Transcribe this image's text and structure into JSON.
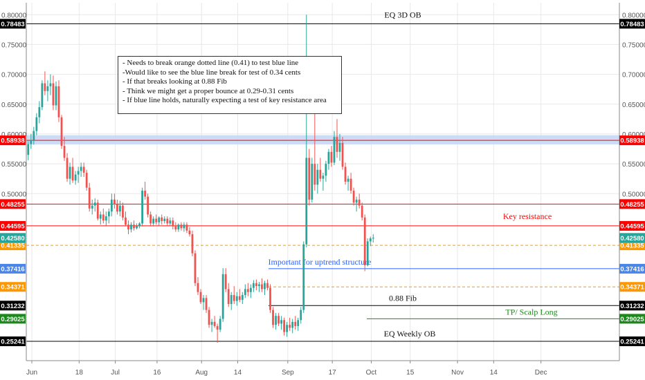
{
  "chart_data": {
    "type": "candlestick",
    "y_range": [
      0.22,
      0.82
    ],
    "axis_ticks": [
      "0.50000",
      "0.55000",
      "0.60000",
      "0.65000",
      "0.70000",
      "0.75000",
      "0.80000"
    ],
    "axis_tick_values": [
      0.5,
      0.55,
      0.6,
      0.65,
      0.7,
      0.75,
      0.8
    ],
    "x_ticks": [
      {
        "label": "Jun",
        "day": 0
      },
      {
        "label": "18",
        "day": 17
      },
      {
        "label": "Jul",
        "day": 30
      },
      {
        "label": "16",
        "day": 45
      },
      {
        "label": "Aug",
        "day": 61
      },
      {
        "label": "14",
        "day": 74
      },
      {
        "label": "Sep",
        "day": 92
      },
      {
        "label": "17",
        "day": 108
      },
      {
        "label": "Oct",
        "day": 122
      },
      {
        "label": "15",
        "day": 136
      },
      {
        "label": "Nov",
        "day": 153
      },
      {
        "label": "14",
        "day": 166
      },
      {
        "label": "Dec",
        "day": 183
      }
    ],
    "levels": [
      {
        "value": 0.78483,
        "label": "0.78483",
        "color": "#000000",
        "style": "solid",
        "text": "EQ 3D OB"
      },
      {
        "value": 0.58938,
        "label": "0.58938",
        "color": "#ff0000",
        "style": "solid",
        "text": ""
      },
      {
        "value": 0.48255,
        "label": "0.48255",
        "color": "#ff0000",
        "style": "solid",
        "text": ""
      },
      {
        "value": 0.44595,
        "label": "0.44595",
        "color": "#ff0000",
        "style": "solid",
        "text": "Key resistance"
      },
      {
        "value": 0.41335,
        "label": "0.41335",
        "color": "#ff9800",
        "style": "dashed",
        "text": ""
      },
      {
        "value": 0.37416,
        "label": "0.37416",
        "color": "#2962ff",
        "style": "solid",
        "text": "Important for uptrend structure"
      },
      {
        "value": 0.34371,
        "label": "0.34371",
        "color": "#ff9800",
        "style": "dashed",
        "text": ""
      },
      {
        "value": 0.31232,
        "label": "0.31232",
        "color": "#000000",
        "style": "solid",
        "text": "0.88 Fib"
      },
      {
        "value": 0.29025,
        "label": "0.29025",
        "color": "#1b8a1b",
        "style": "solid",
        "text": "TP/ Scalp Long"
      },
      {
        "value": 0.25241,
        "label": "0.25241",
        "color": "#000000",
        "style": "solid",
        "text": "EQ Weekly OB"
      }
    ],
    "last_price": {
      "value": 0.4258,
      "label": "0.42580",
      "color": "#26a69a"
    },
    "zone": {
      "low": 0.5825,
      "high": 0.598,
      "color": "#c6d8f5"
    },
    "candles": [
      [
        0.548,
        0.572,
        0.542,
        0.565
      ],
      [
        0.565,
        0.588,
        0.556,
        0.583
      ],
      [
        0.583,
        0.6,
        0.575,
        0.59
      ],
      [
        0.59,
        0.612,
        0.582,
        0.605
      ],
      [
        0.605,
        0.635,
        0.598,
        0.628
      ],
      [
        0.628,
        0.655,
        0.618,
        0.645
      ],
      [
        0.645,
        0.69,
        0.64,
        0.685
      ],
      [
        0.685,
        0.705,
        0.665,
        0.672
      ],
      [
        0.672,
        0.69,
        0.655,
        0.68
      ],
      [
        0.68,
        0.7,
        0.665,
        0.685
      ],
      [
        0.685,
        0.698,
        0.64,
        0.648
      ],
      [
        0.648,
        0.688,
        0.64,
        0.68
      ],
      [
        0.68,
        0.69,
        0.62,
        0.628
      ],
      [
        0.628,
        0.632,
        0.575,
        0.58
      ],
      [
        0.58,
        0.595,
        0.555,
        0.56
      ],
      [
        0.56,
        0.568,
        0.52,
        0.525
      ],
      [
        0.525,
        0.552,
        0.515,
        0.545
      ],
      [
        0.545,
        0.56,
        0.518,
        0.522
      ],
      [
        0.522,
        0.538,
        0.515,
        0.532
      ],
      [
        0.532,
        0.545,
        0.518,
        0.538
      ],
      [
        0.538,
        0.552,
        0.528,
        0.545
      ],
      [
        0.545,
        0.552,
        0.528,
        0.535
      ],
      [
        0.535,
        0.54,
        0.505,
        0.51
      ],
      [
        0.51,
        0.518,
        0.47,
        0.475
      ],
      [
        0.475,
        0.49,
        0.465,
        0.48
      ],
      [
        0.48,
        0.492,
        0.47,
        0.485
      ],
      [
        0.485,
        0.49,
        0.455,
        0.458
      ],
      [
        0.458,
        0.47,
        0.448,
        0.465
      ],
      [
        0.465,
        0.475,
        0.45,
        0.455
      ],
      [
        0.455,
        0.47,
        0.445,
        0.462
      ],
      [
        0.462,
        0.475,
        0.45,
        0.47
      ],
      [
        0.47,
        0.5,
        0.462,
        0.49
      ],
      [
        0.49,
        0.5,
        0.475,
        0.482
      ],
      [
        0.482,
        0.49,
        0.465,
        0.47
      ],
      [
        0.47,
        0.488,
        0.462,
        0.48
      ],
      [
        0.48,
        0.485,
        0.455,
        0.46
      ],
      [
        0.46,
        0.47,
        0.445,
        0.448
      ],
      [
        0.448,
        0.455,
        0.432,
        0.44
      ],
      [
        0.44,
        0.452,
        0.435,
        0.448
      ],
      [
        0.448,
        0.455,
        0.438,
        0.442
      ],
      [
        0.442,
        0.45,
        0.44,
        0.446
      ],
      [
        0.446,
        0.452,
        0.442,
        0.45
      ],
      [
        0.45,
        0.51,
        0.445,
        0.505
      ],
      [
        0.505,
        0.52,
        0.49,
        0.495
      ],
      [
        0.495,
        0.5,
        0.46,
        0.465
      ],
      [
        0.465,
        0.47,
        0.445,
        0.45
      ],
      [
        0.45,
        0.462,
        0.445,
        0.458
      ],
      [
        0.458,
        0.465,
        0.448,
        0.452
      ],
      [
        0.452,
        0.462,
        0.446,
        0.46
      ],
      [
        0.46,
        0.465,
        0.448,
        0.454
      ],
      [
        0.454,
        0.462,
        0.45,
        0.458
      ],
      [
        0.458,
        0.462,
        0.446,
        0.45
      ],
      [
        0.45,
        0.46,
        0.446,
        0.455
      ],
      [
        0.455,
        0.46,
        0.44,
        0.445
      ],
      [
        0.445,
        0.452,
        0.436,
        0.44
      ],
      [
        0.44,
        0.45,
        0.436,
        0.448
      ],
      [
        0.448,
        0.452,
        0.438,
        0.442
      ],
      [
        0.442,
        0.452,
        0.436,
        0.448
      ],
      [
        0.448,
        0.452,
        0.434,
        0.438
      ],
      [
        0.438,
        0.444,
        0.428,
        0.432
      ],
      [
        0.432,
        0.438,
        0.395,
        0.4
      ],
      [
        0.4,
        0.405,
        0.345,
        0.35
      ],
      [
        0.35,
        0.36,
        0.33,
        0.335
      ],
      [
        0.335,
        0.34,
        0.315,
        0.318
      ],
      [
        0.318,
        0.33,
        0.305,
        0.325
      ],
      [
        0.325,
        0.33,
        0.3,
        0.305
      ],
      [
        0.305,
        0.31,
        0.275,
        0.28
      ],
      [
        0.28,
        0.29,
        0.268,
        0.285
      ],
      [
        0.285,
        0.295,
        0.275,
        0.278
      ],
      [
        0.278,
        0.282,
        0.25,
        0.272
      ],
      [
        0.272,
        0.295,
        0.268,
        0.29
      ],
      [
        0.29,
        0.375,
        0.285,
        0.365
      ],
      [
        0.365,
        0.375,
        0.335,
        0.34
      ],
      [
        0.34,
        0.35,
        0.31,
        0.315
      ],
      [
        0.315,
        0.335,
        0.305,
        0.33
      ],
      [
        0.33,
        0.345,
        0.315,
        0.32
      ],
      [
        0.32,
        0.335,
        0.312,
        0.328
      ],
      [
        0.328,
        0.34,
        0.318,
        0.322
      ],
      [
        0.322,
        0.335,
        0.315,
        0.33
      ],
      [
        0.33,
        0.348,
        0.325,
        0.34
      ],
      [
        0.34,
        0.35,
        0.328,
        0.335
      ],
      [
        0.335,
        0.348,
        0.325,
        0.342
      ],
      [
        0.342,
        0.355,
        0.335,
        0.35
      ],
      [
        0.35,
        0.356,
        0.338,
        0.345
      ],
      [
        0.345,
        0.352,
        0.335,
        0.348
      ],
      [
        0.348,
        0.358,
        0.335,
        0.34
      ],
      [
        0.34,
        0.354,
        0.33,
        0.35
      ],
      [
        0.35,
        0.356,
        0.338,
        0.342
      ],
      [
        0.342,
        0.348,
        0.3,
        0.305
      ],
      [
        0.305,
        0.31,
        0.275,
        0.28
      ],
      [
        0.28,
        0.3,
        0.272,
        0.295
      ],
      [
        0.295,
        0.3,
        0.278,
        0.282
      ],
      [
        0.282,
        0.295,
        0.272,
        0.288
      ],
      [
        0.288,
        0.292,
        0.262,
        0.268
      ],
      [
        0.268,
        0.285,
        0.26,
        0.28
      ],
      [
        0.28,
        0.292,
        0.27,
        0.275
      ],
      [
        0.275,
        0.29,
        0.266,
        0.285
      ],
      [
        0.285,
        0.295,
        0.272,
        0.278
      ],
      [
        0.278,
        0.292,
        0.27,
        0.288
      ],
      [
        0.288,
        0.31,
        0.282,
        0.305
      ],
      [
        0.305,
        0.42,
        0.3,
        0.415
      ],
      [
        0.415,
        0.8,
        0.41,
        0.56
      ],
      [
        0.56,
        0.575,
        0.48,
        0.49
      ],
      [
        0.49,
        0.56,
        0.485,
        0.55
      ],
      [
        0.55,
        0.635,
        0.505,
        0.515
      ],
      [
        0.515,
        0.55,
        0.5,
        0.54
      ],
      [
        0.54,
        0.56,
        0.52,
        0.525
      ],
      [
        0.525,
        0.535,
        0.505,
        0.53
      ],
      [
        0.53,
        0.555,
        0.52,
        0.55
      ],
      [
        0.55,
        0.575,
        0.54,
        0.57
      ],
      [
        0.57,
        0.58,
        0.545,
        0.552
      ],
      [
        0.552,
        0.605,
        0.548,
        0.595
      ],
      [
        0.595,
        0.625,
        0.56,
        0.57
      ],
      [
        0.57,
        0.6,
        0.555,
        0.585
      ],
      [
        0.585,
        0.595,
        0.54,
        0.545
      ],
      [
        0.545,
        0.552,
        0.515,
        0.52
      ],
      [
        0.52,
        0.53,
        0.505,
        0.525
      ],
      [
        0.525,
        0.535,
        0.5,
        0.505
      ],
      [
        0.505,
        0.51,
        0.48,
        0.485
      ],
      [
        0.485,
        0.495,
        0.47,
        0.49
      ],
      [
        0.49,
        0.5,
        0.475,
        0.48
      ],
      [
        0.48,
        0.485,
        0.455,
        0.46
      ],
      [
        0.46,
        0.465,
        0.37,
        0.38
      ],
      [
        0.38,
        0.425,
        0.378,
        0.42
      ],
      [
        0.42,
        0.428,
        0.412,
        0.425
      ],
      [
        0.425,
        0.432,
        0.418,
        0.426
      ]
    ]
  },
  "annotation": {
    "lines": [
      "- Needs to break orange dotted line (0.41) to test blue line",
      "-Would like to see the blue line break for test of 0.34 cents",
      "- If that breaks looking at 0.88 Fib",
      "- Think we might get a proper bounce at  0.29-0.31 cents",
      "- If blue line holds, naturally expecting a test of key resistance area"
    ]
  },
  "colors": {
    "up": "#26a69a",
    "down": "#ef5350",
    "grid": "#e8e8e8",
    "axis_text": "#555555"
  }
}
